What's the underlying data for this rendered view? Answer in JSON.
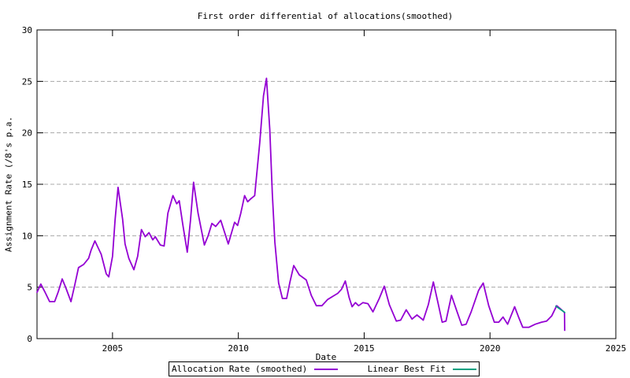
{
  "page": {
    "background": "#ffffff"
  },
  "chart_data": {
    "type": "line",
    "title": "First order differential of allocations(smoothed)",
    "xlabel": "Date",
    "ylabel": "Assignment Rate (/8's p.a.",
    "xlim": [
      2002,
      2025
    ],
    "ylim": [
      0,
      30
    ],
    "xticks": [
      2005,
      2010,
      2015,
      2020,
      2025
    ],
    "yticks": [
      0,
      5,
      10,
      15,
      20,
      25,
      30
    ],
    "grid": {
      "horizontal_only": true,
      "style": "dashed",
      "color": "#a8a8a8"
    },
    "axis_color": "#000000",
    "legend_position": "below-plot-boxed",
    "series": [
      {
        "name": "Allocation Rate (smoothed)",
        "color": "#9400d3",
        "points": [
          [
            2002.0,
            4.5
          ],
          [
            2002.15,
            5.3
          ],
          [
            2002.3,
            4.6
          ],
          [
            2002.5,
            3.6
          ],
          [
            2002.7,
            3.6
          ],
          [
            2002.85,
            4.6
          ],
          [
            2003.0,
            5.8
          ],
          [
            2003.15,
            4.9
          ],
          [
            2003.35,
            3.6
          ],
          [
            2003.5,
            5.2
          ],
          [
            2003.65,
            6.9
          ],
          [
            2003.85,
            7.2
          ],
          [
            2004.05,
            7.8
          ],
          [
            2004.15,
            8.6
          ],
          [
            2004.3,
            9.5
          ],
          [
            2004.55,
            8.2
          ],
          [
            2004.75,
            6.3
          ],
          [
            2004.85,
            6.0
          ],
          [
            2005.0,
            8.0
          ],
          [
            2005.1,
            11.5
          ],
          [
            2005.22,
            14.7
          ],
          [
            2005.4,
            11.6
          ],
          [
            2005.5,
            9.2
          ],
          [
            2005.65,
            7.8
          ],
          [
            2005.85,
            6.7
          ],
          [
            2006.0,
            8.0
          ],
          [
            2006.15,
            10.6
          ],
          [
            2006.3,
            9.9
          ],
          [
            2006.45,
            10.3
          ],
          [
            2006.6,
            9.6
          ],
          [
            2006.7,
            9.9
          ],
          [
            2006.9,
            9.1
          ],
          [
            2007.05,
            9.0
          ],
          [
            2007.2,
            12.2
          ],
          [
            2007.4,
            13.9
          ],
          [
            2007.55,
            13.1
          ],
          [
            2007.65,
            13.4
          ],
          [
            2007.8,
            11.0
          ],
          [
            2007.97,
            8.4
          ],
          [
            2008.1,
            11.5
          ],
          [
            2008.22,
            15.2
          ],
          [
            2008.4,
            12.2
          ],
          [
            2008.65,
            9.1
          ],
          [
            2008.8,
            10.0
          ],
          [
            2008.95,
            11.2
          ],
          [
            2009.1,
            10.9
          ],
          [
            2009.3,
            11.5
          ],
          [
            2009.6,
            9.2
          ],
          [
            2009.85,
            11.3
          ],
          [
            2009.97,
            11.0
          ],
          [
            2010.1,
            12.2
          ],
          [
            2010.25,
            13.9
          ],
          [
            2010.37,
            13.3
          ],
          [
            2010.5,
            13.6
          ],
          [
            2010.65,
            13.9
          ],
          [
            2010.85,
            19.0
          ],
          [
            2011.0,
            23.6
          ],
          [
            2011.12,
            25.3
          ],
          [
            2011.25,
            20.3
          ],
          [
            2011.35,
            14.1
          ],
          [
            2011.45,
            9.4
          ],
          [
            2011.6,
            5.4
          ],
          [
            2011.75,
            3.9
          ],
          [
            2011.92,
            3.9
          ],
          [
            2012.05,
            5.5
          ],
          [
            2012.2,
            7.1
          ],
          [
            2012.42,
            6.2
          ],
          [
            2012.7,
            5.7
          ],
          [
            2012.9,
            4.2
          ],
          [
            2013.1,
            3.2
          ],
          [
            2013.32,
            3.2
          ],
          [
            2013.55,
            3.8
          ],
          [
            2013.75,
            4.1
          ],
          [
            2013.95,
            4.4
          ],
          [
            2014.1,
            4.8
          ],
          [
            2014.25,
            5.6
          ],
          [
            2014.4,
            4.0
          ],
          [
            2014.52,
            3.1
          ],
          [
            2014.65,
            3.5
          ],
          [
            2014.78,
            3.2
          ],
          [
            2014.95,
            3.5
          ],
          [
            2015.15,
            3.4
          ],
          [
            2015.35,
            2.6
          ],
          [
            2015.6,
            3.9
          ],
          [
            2015.8,
            5.1
          ],
          [
            2016.0,
            3.3
          ],
          [
            2016.28,
            1.7
          ],
          [
            2016.45,
            1.8
          ],
          [
            2016.67,
            2.8
          ],
          [
            2016.9,
            1.9
          ],
          [
            2017.1,
            2.3
          ],
          [
            2017.35,
            1.8
          ],
          [
            2017.55,
            3.3
          ],
          [
            2017.75,
            5.5
          ],
          [
            2017.95,
            3.3
          ],
          [
            2018.1,
            1.6
          ],
          [
            2018.25,
            1.7
          ],
          [
            2018.47,
            4.2
          ],
          [
            2018.68,
            2.7
          ],
          [
            2018.88,
            1.3
          ],
          [
            2019.05,
            1.4
          ],
          [
            2019.25,
            2.6
          ],
          [
            2019.55,
            4.7
          ],
          [
            2019.73,
            5.4
          ],
          [
            2019.95,
            3.2
          ],
          [
            2020.17,
            1.6
          ],
          [
            2020.35,
            1.6
          ],
          [
            2020.52,
            2.1
          ],
          [
            2020.7,
            1.4
          ],
          [
            2020.98,
            3.1
          ],
          [
            2021.15,
            2.0
          ],
          [
            2021.3,
            1.1
          ],
          [
            2021.55,
            1.1
          ],
          [
            2021.8,
            1.4
          ],
          [
            2022.05,
            1.6
          ],
          [
            2022.25,
            1.7
          ],
          [
            2022.45,
            2.2
          ],
          [
            2022.65,
            3.2
          ],
          [
            2022.8,
            2.9
          ],
          [
            2022.93,
            2.6
          ],
          [
            2022.96,
            2.5
          ],
          [
            2022.97,
            0.8
          ]
        ]
      },
      {
        "name": "Linear Best Fit",
        "color": "#00a080",
        "points": [
          [
            2022.62,
            3.15
          ],
          [
            2022.97,
            2.55
          ]
        ]
      }
    ]
  }
}
